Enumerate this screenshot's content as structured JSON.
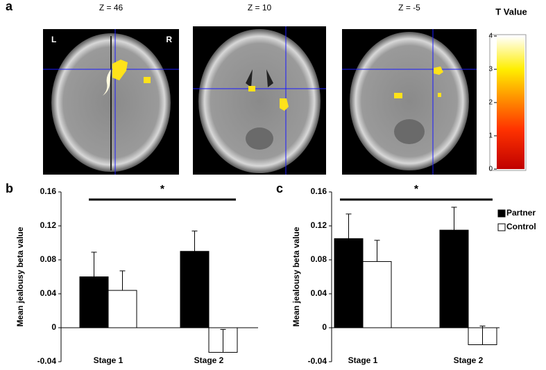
{
  "panel_a": {
    "label": "a",
    "slices": [
      "Z = 46",
      "Z = 10",
      "Z = -5"
    ],
    "left": "L",
    "right": "R",
    "colorbar": {
      "title": "T Value",
      "lim": [
        0,
        4
      ],
      "ticks": [
        0,
        1,
        2,
        3,
        4
      ]
    }
  },
  "chart_data": [
    {
      "type": "bar",
      "label": "b",
      "ylabel": "Mean jealousy beta value",
      "annotation": "*",
      "categories": [
        "Stage 1",
        "Stage 2"
      ],
      "series": [
        {
          "name": "Partner",
          "color": "#000000",
          "values": [
            0.06,
            0.09
          ],
          "errors": [
            0.029,
            0.024
          ]
        },
        {
          "name": "Control",
          "color": "#ffffff",
          "values": [
            0.044,
            -0.029
          ],
          "errors": [
            0.023,
            0.027
          ]
        }
      ],
      "ylim": [
        -0.04,
        0.16
      ],
      "yticks": [
        -0.04,
        0,
        0.04,
        0.08,
        0.12,
        0.16
      ]
    },
    {
      "type": "bar",
      "label": "c",
      "ylabel": "Mean jealousy beta value",
      "annotation": "*",
      "categories": [
        "Stage 1",
        "Stage 2"
      ],
      "series": [
        {
          "name": "Partner",
          "color": "#000000",
          "values": [
            0.105,
            0.115
          ],
          "errors": [
            0.029,
            0.027
          ]
        },
        {
          "name": "Control",
          "color": "#ffffff",
          "values": [
            0.078,
            -0.02
          ],
          "errors": [
            0.025,
            0.022
          ]
        }
      ],
      "ylim": [
        -0.04,
        0.16
      ],
      "yticks": [
        -0.04,
        0,
        0.04,
        0.08,
        0.12,
        0.16
      ],
      "legend": "upper right"
    }
  ]
}
